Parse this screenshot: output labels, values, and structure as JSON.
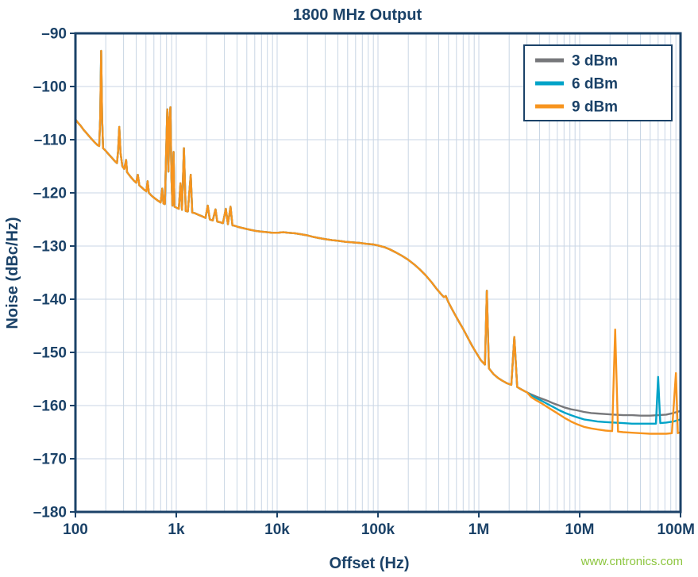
{
  "page": {
    "watermark": "www.cntronics.com"
  },
  "chart_data": {
    "type": "line",
    "title": "1800 MHz Output",
    "xlabel": "Offset (Hz)",
    "ylabel": "Noise (dBc/Hz)",
    "x_scale": "log",
    "xlim": [
      100,
      100000000
    ],
    "ylim": [
      -180,
      -90
    ],
    "grid": true,
    "legend_position": "top-right-inside",
    "colors": {
      "text": "#1b4268",
      "border": "#1b4268",
      "grid": "#c9d6e4",
      "background": "#ffffff",
      "watermark": "#8dc63f"
    },
    "x_ticks": [
      {
        "v": 100,
        "label": "100"
      },
      {
        "v": 1000,
        "label": "1k"
      },
      {
        "v": 10000,
        "label": "10k"
      },
      {
        "v": 100000,
        "label": "100k"
      },
      {
        "v": 1000000,
        "label": "1M"
      },
      {
        "v": 10000000,
        "label": "10M"
      },
      {
        "v": 100000000,
        "label": "100M"
      }
    ],
    "y_ticks": [
      {
        "v": -90,
        "label": "–90"
      },
      {
        "v": -100,
        "label": "–100"
      },
      {
        "v": -110,
        "label": "–110"
      },
      {
        "v": -120,
        "label": "–120"
      },
      {
        "v": -130,
        "label": "–130"
      },
      {
        "v": -140,
        "label": "–140"
      },
      {
        "v": -150,
        "label": "–150"
      },
      {
        "v": -160,
        "label": "–160"
      },
      {
        "v": -170,
        "label": "–170"
      },
      {
        "v": -180,
        "label": "–180"
      }
    ],
    "note": "All three power-level traces overlap below ~3 MHz offset (base_points, dBc/Hz vs Hz, spurs included); they diverge above 3 MHz (per-series tail_points).",
    "base_points": [
      [
        100,
        -106.2
      ],
      [
        107,
        -106.9
      ],
      [
        113,
        -107.4
      ],
      [
        120,
        -108.1
      ],
      [
        128,
        -108.7
      ],
      [
        136,
        -109.3
      ],
      [
        145,
        -109.9
      ],
      [
        155,
        -110.5
      ],
      [
        165,
        -111
      ],
      [
        172,
        -111.2
      ],
      [
        176,
        -106
      ],
      [
        180,
        -93.3
      ],
      [
        184,
        -106
      ],
      [
        188,
        -111.6
      ],
      [
        200,
        -112.1
      ],
      [
        215,
        -112.8
      ],
      [
        230,
        -113.4
      ],
      [
        245,
        -114
      ],
      [
        258,
        -114.4
      ],
      [
        265,
        -112
      ],
      [
        272,
        -107.6
      ],
      [
        280,
        -112.5
      ],
      [
        292,
        -115
      ],
      [
        305,
        -115.5
      ],
      [
        318,
        -113.8
      ],
      [
        325,
        -116.1
      ],
      [
        340,
        -116.6
      ],
      [
        360,
        -117.2
      ],
      [
        380,
        -117.7
      ],
      [
        400,
        -118.1
      ],
      [
        415,
        -116.6
      ],
      [
        430,
        -118.6
      ],
      [
        455,
        -119
      ],
      [
        480,
        -119.4
      ],
      [
        505,
        -119.7
      ],
      [
        520,
        -117.8
      ],
      [
        535,
        -120
      ],
      [
        560,
        -120.4
      ],
      [
        590,
        -120.8
      ],
      [
        620,
        -121.1
      ],
      [
        660,
        -121.5
      ],
      [
        700,
        -121.8
      ],
      [
        725,
        -119.2
      ],
      [
        745,
        -122
      ],
      [
        770,
        -122.1
      ],
      [
        795,
        -112
      ],
      [
        815,
        -104.3
      ],
      [
        835,
        -116
      ],
      [
        855,
        -106
      ],
      [
        875,
        -103.9
      ],
      [
        895,
        -117
      ],
      [
        915,
        -122.4
      ],
      [
        940,
        -112.3
      ],
      [
        960,
        -122.6
      ],
      [
        985,
        -122.7
      ],
      [
        1010,
        -122.8
      ],
      [
        1060,
        -123
      ],
      [
        1100,
        -118.2
      ],
      [
        1140,
        -123.2
      ],
      [
        1190,
        -111.6
      ],
      [
        1240,
        -123.4
      ],
      [
        1300,
        -123.5
      ],
      [
        1390,
        -116.6
      ],
      [
        1440,
        -123.7
      ],
      [
        1520,
        -123.8
      ],
      [
        1650,
        -124.1
      ],
      [
        1800,
        -124.4
      ],
      [
        1950,
        -124.7
      ],
      [
        2050,
        -122.4
      ],
      [
        2150,
        -125
      ],
      [
        2300,
        -125.2
      ],
      [
        2450,
        -123.1
      ],
      [
        2550,
        -125.4
      ],
      [
        2700,
        -125.5
      ],
      [
        2900,
        -125.7
      ],
      [
        3100,
        -123
      ],
      [
        3250,
        -125.9
      ],
      [
        3450,
        -122.6
      ],
      [
        3600,
        -126.1
      ],
      [
        3800,
        -126.2
      ],
      [
        4100,
        -126.4
      ],
      [
        4500,
        -126.6
      ],
      [
        5000,
        -126.8
      ],
      [
        5600,
        -127
      ],
      [
        6300,
        -127.2
      ],
      [
        7100,
        -127.3
      ],
      [
        8000,
        -127.4
      ],
      [
        9000,
        -127.5
      ],
      [
        10000,
        -127.5
      ],
      [
        11500,
        -127.4
      ],
      [
        13000,
        -127.5
      ],
      [
        15000,
        -127.6
      ],
      [
        17500,
        -127.8
      ],
      [
        20000,
        -128
      ],
      [
        23000,
        -128.3
      ],
      [
        26000,
        -128.5
      ],
      [
        30000,
        -128.7
      ],
      [
        35000,
        -128.9
      ],
      [
        40000,
        -129
      ],
      [
        47000,
        -129.2
      ],
      [
        55000,
        -129.3
      ],
      [
        65000,
        -129.4
      ],
      [
        78000,
        -129.6
      ],
      [
        90000,
        -129.7
      ],
      [
        100000,
        -129.9
      ],
      [
        115000,
        -130.2
      ],
      [
        130000,
        -130.6
      ],
      [
        150000,
        -131.2
      ],
      [
        175000,
        -131.9
      ],
      [
        200000,
        -132.6
      ],
      [
        230000,
        -133.5
      ],
      [
        260000,
        -134.4
      ],
      [
        300000,
        -135.6
      ],
      [
        340000,
        -136.8
      ],
      [
        380000,
        -138
      ],
      [
        420000,
        -139
      ],
      [
        450000,
        -139.6
      ],
      [
        470000,
        -139.4
      ],
      [
        500000,
        -140.6
      ],
      [
        540000,
        -141.8
      ],
      [
        580000,
        -142.9
      ],
      [
        630000,
        -144.1
      ],
      [
        700000,
        -145.6
      ],
      [
        780000,
        -147.3
      ],
      [
        860000,
        -148.8
      ],
      [
        950000,
        -150.2
      ],
      [
        1050000,
        -151.5
      ],
      [
        1150000,
        -152.3
      ],
      [
        1200000,
        -138.4
      ],
      [
        1260000,
        -153
      ],
      [
        1400000,
        -154.1
      ],
      [
        1550000,
        -154.8
      ],
      [
        1700000,
        -155.3
      ],
      [
        1900000,
        -155.8
      ],
      [
        2100000,
        -156.1
      ],
      [
        2250000,
        -147.1
      ],
      [
        2400000,
        -156.5
      ],
      [
        2600000,
        -156.9
      ],
      [
        2850000,
        -157.3
      ],
      [
        3000000,
        -157.5
      ]
    ],
    "series": [
      {
        "name": "3 dBm",
        "color": "#77787b",
        "tail_points": [
          [
            3300000,
            -157.9
          ],
          [
            3700000,
            -158.3
          ],
          [
            4200000,
            -158.7
          ],
          [
            4800000,
            -159.1
          ],
          [
            5500000,
            -159.6
          ],
          [
            6300000,
            -160
          ],
          [
            7200000,
            -160.4
          ],
          [
            8200000,
            -160.7
          ],
          [
            9400000,
            -160.9
          ],
          [
            11000000,
            -161.2
          ],
          [
            13000000,
            -161.4
          ],
          [
            15000000,
            -161.5
          ],
          [
            18000000,
            -161.6
          ],
          [
            22000000,
            -161.7
          ],
          [
            27000000,
            -161.8
          ],
          [
            33000000,
            -161.8
          ],
          [
            40000000,
            -161.9
          ],
          [
            50000000,
            -161.9
          ],
          [
            60000000,
            -161.8
          ],
          [
            72000000,
            -161.7
          ],
          [
            85000000,
            -161.4
          ],
          [
            100000000,
            -161
          ]
        ]
      },
      {
        "name": "6 dBm",
        "color": "#00a3c8",
        "tail_points": [
          [
            3300000,
            -158.1
          ],
          [
            3700000,
            -158.6
          ],
          [
            4200000,
            -159.1
          ],
          [
            4800000,
            -159.7
          ],
          [
            5500000,
            -160.3
          ],
          [
            6300000,
            -160.9
          ],
          [
            7200000,
            -161.4
          ],
          [
            8200000,
            -161.8
          ],
          [
            9400000,
            -162.2
          ],
          [
            11000000,
            -162.6
          ],
          [
            13000000,
            -162.8
          ],
          [
            15000000,
            -163
          ],
          [
            18000000,
            -163.1
          ],
          [
            22000000,
            -163.2
          ],
          [
            27000000,
            -163.3
          ],
          [
            33000000,
            -163.4
          ],
          [
            40000000,
            -163.4
          ],
          [
            50000000,
            -163.4
          ],
          [
            57000000,
            -163.4
          ],
          [
            60000000,
            -154.6
          ],
          [
            63000000,
            -163.3
          ],
          [
            72000000,
            -163.2
          ],
          [
            85000000,
            -163
          ],
          [
            100000000,
            -162.6
          ]
        ]
      },
      {
        "name": "9 dBm",
        "color": "#f7941e",
        "tail_points": [
          [
            3300000,
            -158.4
          ],
          [
            3700000,
            -159
          ],
          [
            4200000,
            -159.6
          ],
          [
            4800000,
            -160.3
          ],
          [
            5500000,
            -161
          ],
          [
            6300000,
            -161.7
          ],
          [
            7200000,
            -162.4
          ],
          [
            8200000,
            -163
          ],
          [
            9400000,
            -163.5
          ],
          [
            11000000,
            -164
          ],
          [
            13000000,
            -164.3
          ],
          [
            15000000,
            -164.5
          ],
          [
            18000000,
            -164.7
          ],
          [
            21000000,
            -164.8
          ],
          [
            22500000,
            -145.7
          ],
          [
            24000000,
            -164.9
          ],
          [
            27000000,
            -165
          ],
          [
            33000000,
            -165.1
          ],
          [
            40000000,
            -165.2
          ],
          [
            50000000,
            -165.3
          ],
          [
            60000000,
            -165.3
          ],
          [
            72000000,
            -165.3
          ],
          [
            82000000,
            -165.2
          ],
          [
            90000000,
            -153.9
          ],
          [
            94000000,
            -165.2
          ],
          [
            100000000,
            -165
          ]
        ]
      }
    ]
  }
}
